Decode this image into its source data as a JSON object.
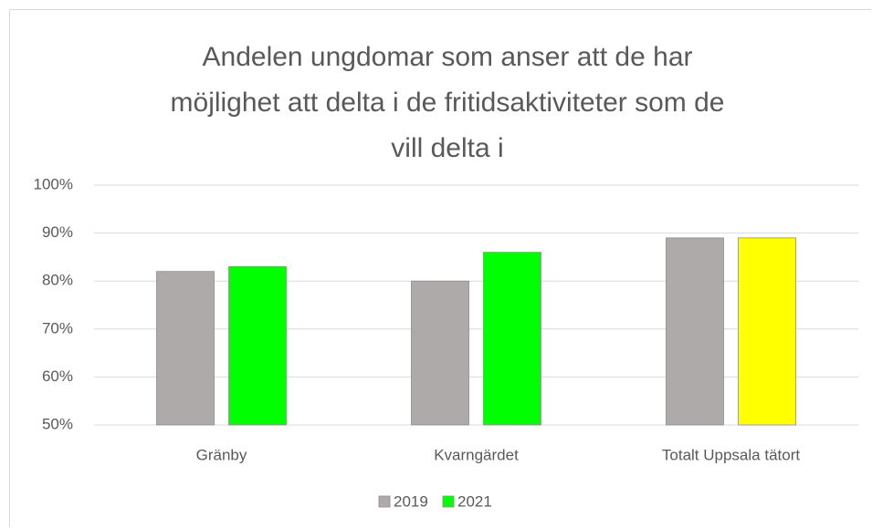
{
  "chart_data": {
    "type": "bar",
    "title": "Andelen ungdomar som anser att de har\nmöjlighet att delta i de fritidsaktiviteter som de\nvill delta i",
    "categories": [
      "Gränby",
      "Kvarngärdet",
      "Totalt Uppsala tätort"
    ],
    "series": [
      {
        "name": "2019",
        "color": "#aeaaaa",
        "values": [
          82,
          80,
          89
        ]
      },
      {
        "name": "2021",
        "color": "#00ff00",
        "colors": [
          "#00ff00",
          "#00ff00",
          "#ffff00"
        ],
        "values": [
          83,
          86,
          89
        ]
      }
    ],
    "ylim": [
      50,
      100
    ],
    "yticks": [
      {
        "value": 50,
        "label": "50%"
      },
      {
        "value": 60,
        "label": "60%"
      },
      {
        "value": 70,
        "label": "70%"
      },
      {
        "value": 80,
        "label": "80%"
      },
      {
        "value": 90,
        "label": "90%"
      },
      {
        "value": 100,
        "label": "100%"
      }
    ],
    "grid": true,
    "legend": "bottom"
  }
}
